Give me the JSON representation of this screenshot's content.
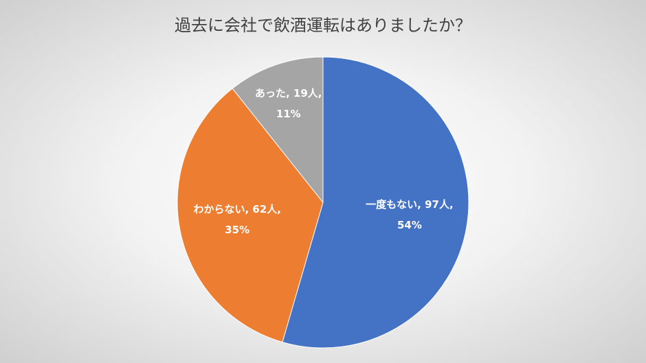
{
  "chart_data": {
    "type": "pie",
    "title": "過去に会社で飲酒運転はありましたか？",
    "values": [
      97,
      62,
      19
    ],
    "value_labels": [
      "一度もない, 97人, 54%",
      "わからない, 62人, 35%",
      "あった, 19人, 11%"
    ],
    "colors": [
      "#4472c4",
      "#ed7d31",
      "#a5a5a5"
    ]
  }
}
